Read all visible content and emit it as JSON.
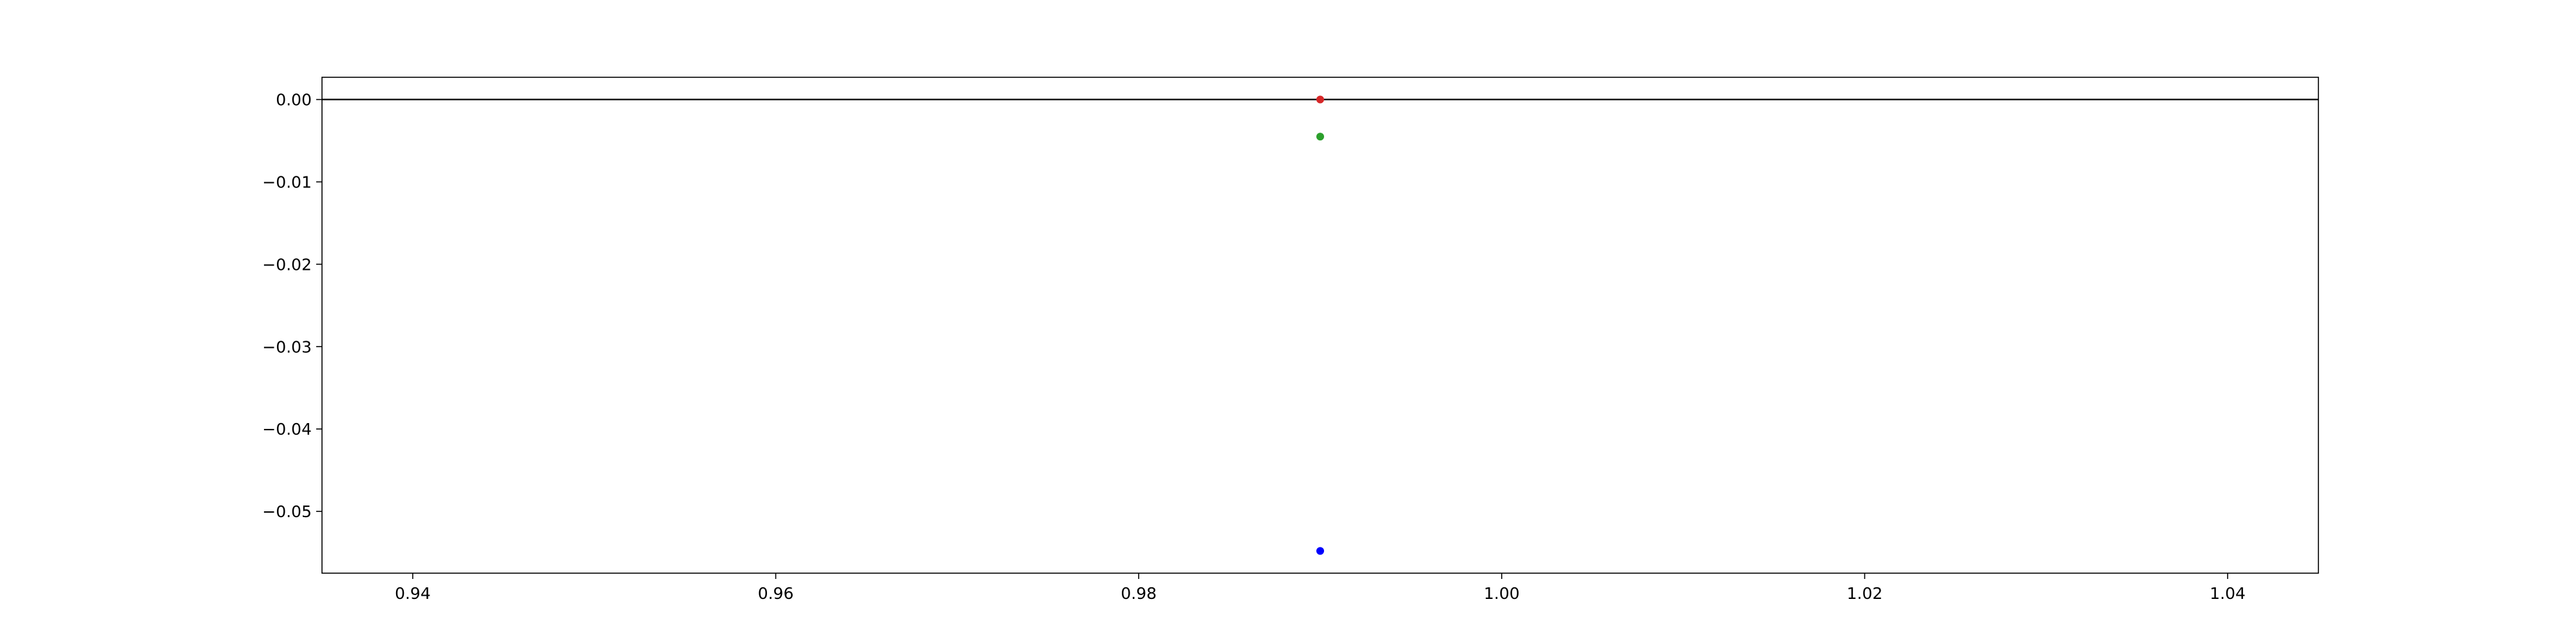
{
  "chart_data": {
    "type": "scatter",
    "title": "",
    "xlabel": "",
    "ylabel": "",
    "xlim": [
      0.935,
      1.045
    ],
    "ylim": [
      -0.0575,
      0.0027
    ],
    "xticks": [
      0.94,
      0.96,
      0.98,
      1.0,
      1.02,
      1.04
    ],
    "xtick_labels": [
      "0.94",
      "0.96",
      "0.98",
      "1.00",
      "1.02",
      "1.04"
    ],
    "yticks": [
      0.0,
      -0.01,
      -0.02,
      -0.03,
      -0.04,
      -0.05
    ],
    "ytick_labels": [
      "0.00",
      "−0.01",
      "−0.02",
      "−0.03",
      "−0.04",
      "−0.05"
    ],
    "grid": false,
    "legend": "none",
    "hline": {
      "y": 0.0,
      "color": "#000000"
    },
    "series": [
      {
        "color": "#d62728",
        "points": [
          {
            "x": 0.99,
            "y": 0.0
          }
        ]
      },
      {
        "color": "#2ca02c",
        "points": [
          {
            "x": 0.99,
            "y": -0.0045
          }
        ]
      },
      {
        "color": "#0000ff",
        "points": [
          {
            "x": 0.99,
            "y": -0.0548
          }
        ]
      }
    ]
  }
}
